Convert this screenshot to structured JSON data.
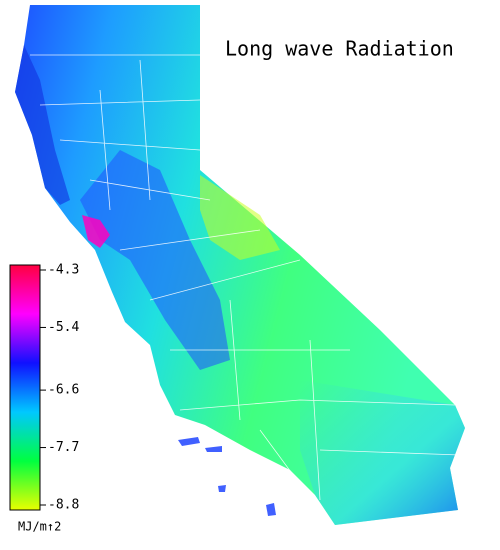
{
  "title": "Long wave Radiation",
  "colorbar": {
    "lim": [
      -8.8,
      -4.3
    ],
    "ticks": [
      -4.3,
      -5.4,
      -6.6,
      -7.7,
      -8.8
    ],
    "unit": "MJ/m↑2",
    "colors": [
      "#ff0040",
      "#ff00ff",
      "#1010ff",
      "#00c8ff",
      "#00ff40",
      "#e8ff00"
    ]
  }
}
